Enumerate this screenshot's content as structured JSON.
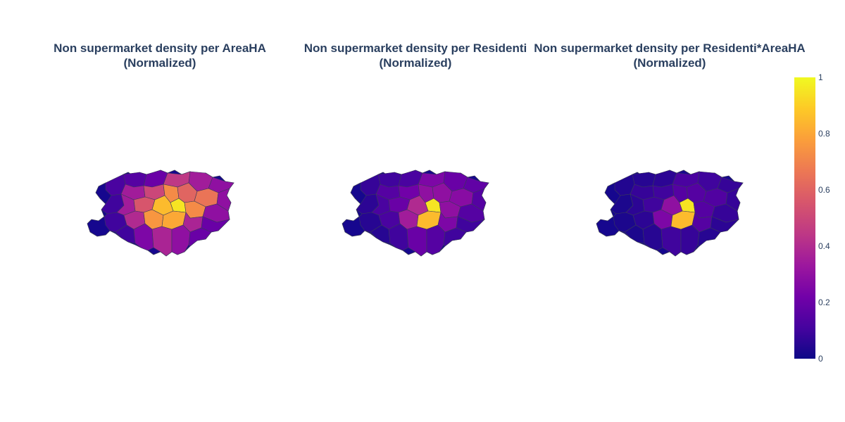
{
  "panels": [
    {
      "title": "Non supermarket density per AreaHA\n(Normalized)"
    },
    {
      "title": "Non supermarket density per Residenti\n(Normalized)"
    },
    {
      "title": "Non supermarket density per Residenti*AreaHA\n(Normalized)"
    }
  ],
  "colorscale": {
    "name": "Plasma",
    "colors": [
      "#0d0887",
      "#46039f",
      "#7201a8",
      "#9c179e",
      "#bd3786",
      "#d8576b",
      "#ed7953",
      "#fb9f3a",
      "#fdca26",
      "#f0f921"
    ],
    "ticks": [
      "1",
      "0.8",
      "0.6",
      "0.4",
      "0.2",
      "0"
    ],
    "range": [
      0,
      1
    ]
  },
  "map_style": {
    "border_color": "#3a3a5a",
    "base_color": "#16078e"
  }
}
